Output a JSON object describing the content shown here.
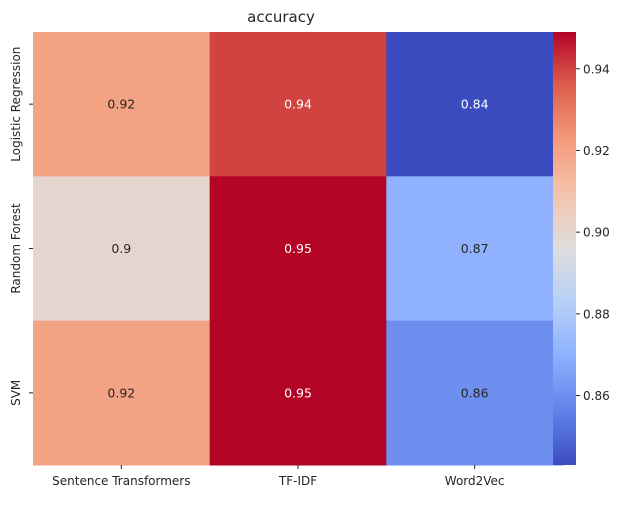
{
  "chart_data": {
    "type": "heatmap",
    "title": "accuracy",
    "colormap": "coolwarm",
    "x_categories": [
      "Sentence Transformers",
      "TF-IDF",
      "Word2Vec"
    ],
    "y_categories": [
      "Logistic Regression",
      "Random Forest",
      "SVM"
    ],
    "values": [
      [
        0.92,
        0.94,
        0.84
      ],
      [
        0.9,
        0.95,
        0.87
      ],
      [
        0.92,
        0.95,
        0.86
      ]
    ],
    "cell_labels": [
      [
        "0.92",
        "0.94",
        "0.84"
      ],
      [
        "0.9",
        "0.95",
        "0.87"
      ],
      [
        "0.92",
        "0.95",
        "0.86"
      ]
    ],
    "colorbar": {
      "vmin": 0.843,
      "vmax": 0.949,
      "ticks": [
        0.86,
        0.88,
        0.9,
        0.92,
        0.94
      ],
      "tick_labels": [
        "0.86",
        "0.88",
        "0.90",
        "0.92",
        "0.94"
      ]
    },
    "grid": false,
    "legend": "colorbar-right"
  }
}
